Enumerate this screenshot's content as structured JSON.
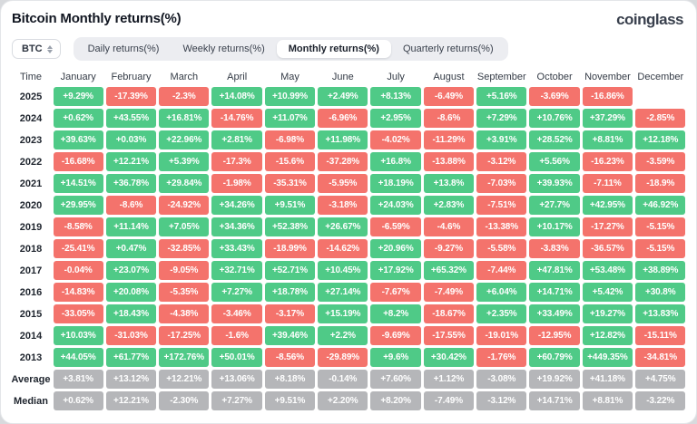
{
  "header": {
    "title": "Bitcoin Monthly returns(%)",
    "logo": "coinglass"
  },
  "controls": {
    "coin": "BTC",
    "coin_icon": "sort-arrows-icon",
    "tabs": [
      {
        "label": "Daily returns(%)",
        "active": false
      },
      {
        "label": "Weekly returns(%)",
        "active": false
      },
      {
        "label": "Monthly returns(%)",
        "active": true
      },
      {
        "label": "Quarterly returns(%)",
        "active": false
      }
    ]
  },
  "colors": {
    "positive": "#4FCA87",
    "negative": "#F4736C",
    "neutral": "#B5B6B9"
  },
  "table": {
    "columns": [
      "Time",
      "January",
      "February",
      "March",
      "April",
      "May",
      "June",
      "July",
      "August",
      "September",
      "October",
      "November",
      "December"
    ],
    "rows": [
      {
        "label": "2025",
        "type": "year",
        "values": [
          "+9.29%",
          "-17.39%",
          "-2.3%",
          "+14.08%",
          "+10.99%",
          "+2.49%",
          "+8.13%",
          "-6.49%",
          "+5.16%",
          "-3.69%",
          "-16.86%",
          ""
        ]
      },
      {
        "label": "2024",
        "type": "year",
        "values": [
          "+0.62%",
          "+43.55%",
          "+16.81%",
          "-14.76%",
          "+11.07%",
          "-6.96%",
          "+2.95%",
          "-8.6%",
          "+7.29%",
          "+10.76%",
          "+37.29%",
          "-2.85%"
        ]
      },
      {
        "label": "2023",
        "type": "year",
        "values": [
          "+39.63%",
          "+0.03%",
          "+22.96%",
          "+2.81%",
          "-6.98%",
          "+11.98%",
          "-4.02%",
          "-11.29%",
          "+3.91%",
          "+28.52%",
          "+8.81%",
          "+12.18%"
        ]
      },
      {
        "label": "2022",
        "type": "year",
        "values": [
          "-16.68%",
          "+12.21%",
          "+5.39%",
          "-17.3%",
          "-15.6%",
          "-37.28%",
          "+16.8%",
          "-13.88%",
          "-3.12%",
          "+5.56%",
          "-16.23%",
          "-3.59%"
        ]
      },
      {
        "label": "2021",
        "type": "year",
        "values": [
          "+14.51%",
          "+36.78%",
          "+29.84%",
          "-1.98%",
          "-35.31%",
          "-5.95%",
          "+18.19%",
          "+13.8%",
          "-7.03%",
          "+39.93%",
          "-7.11%",
          "-18.9%"
        ]
      },
      {
        "label": "2020",
        "type": "year",
        "values": [
          "+29.95%",
          "-8.6%",
          "-24.92%",
          "+34.26%",
          "+9.51%",
          "-3.18%",
          "+24.03%",
          "+2.83%",
          "-7.51%",
          "+27.7%",
          "+42.95%",
          "+46.92%"
        ]
      },
      {
        "label": "2019",
        "type": "year",
        "values": [
          "-8.58%",
          "+11.14%",
          "+7.05%",
          "+34.36%",
          "+52.38%",
          "+26.67%",
          "-6.59%",
          "-4.6%",
          "-13.38%",
          "+10.17%",
          "-17.27%",
          "-5.15%"
        ]
      },
      {
        "label": "2018",
        "type": "year",
        "values": [
          "-25.41%",
          "+0.47%",
          "-32.85%",
          "+33.43%",
          "-18.99%",
          "-14.62%",
          "+20.96%",
          "-9.27%",
          "-5.58%",
          "-3.83%",
          "-36.57%",
          "-5.15%"
        ]
      },
      {
        "label": "2017",
        "type": "year",
        "values": [
          "-0.04%",
          "+23.07%",
          "-9.05%",
          "+32.71%",
          "+52.71%",
          "+10.45%",
          "+17.92%",
          "+65.32%",
          "-7.44%",
          "+47.81%",
          "+53.48%",
          "+38.89%"
        ]
      },
      {
        "label": "2016",
        "type": "year",
        "values": [
          "-14.83%",
          "+20.08%",
          "-5.35%",
          "+7.27%",
          "+18.78%",
          "+27.14%",
          "-7.67%",
          "-7.49%",
          "+6.04%",
          "+14.71%",
          "+5.42%",
          "+30.8%"
        ]
      },
      {
        "label": "2015",
        "type": "year",
        "values": [
          "-33.05%",
          "+18.43%",
          "-4.38%",
          "-3.46%",
          "-3.17%",
          "+15.19%",
          "+8.2%",
          "-18.67%",
          "+2.35%",
          "+33.49%",
          "+19.27%",
          "+13.83%"
        ]
      },
      {
        "label": "2014",
        "type": "year",
        "values": [
          "+10.03%",
          "-31.03%",
          "-17.25%",
          "-1.6%",
          "+39.46%",
          "+2.2%",
          "-9.69%",
          "-17.55%",
          "-19.01%",
          "-12.95%",
          "+12.82%",
          "-15.11%"
        ]
      },
      {
        "label": "2013",
        "type": "year",
        "values": [
          "+44.05%",
          "+61.77%",
          "+172.76%",
          "+50.01%",
          "-8.56%",
          "-29.89%",
          "+9.6%",
          "+30.42%",
          "-1.76%",
          "+60.79%",
          "+449.35%",
          "-34.81%"
        ]
      },
      {
        "label": "Average",
        "type": "summary",
        "values": [
          "+3.81%",
          "+13.12%",
          "+12.21%",
          "+13.06%",
          "+8.18%",
          "-0.14%",
          "+7.60%",
          "+1.12%",
          "-3.08%",
          "+19.92%",
          "+41.18%",
          "+4.75%"
        ]
      },
      {
        "label": "Median",
        "type": "summary",
        "values": [
          "+0.62%",
          "+12.21%",
          "-2.30%",
          "+7.27%",
          "+9.51%",
          "+2.20%",
          "+8.20%",
          "-7.49%",
          "-3.12%",
          "+14.71%",
          "+8.81%",
          "-3.22%"
        ]
      }
    ]
  }
}
